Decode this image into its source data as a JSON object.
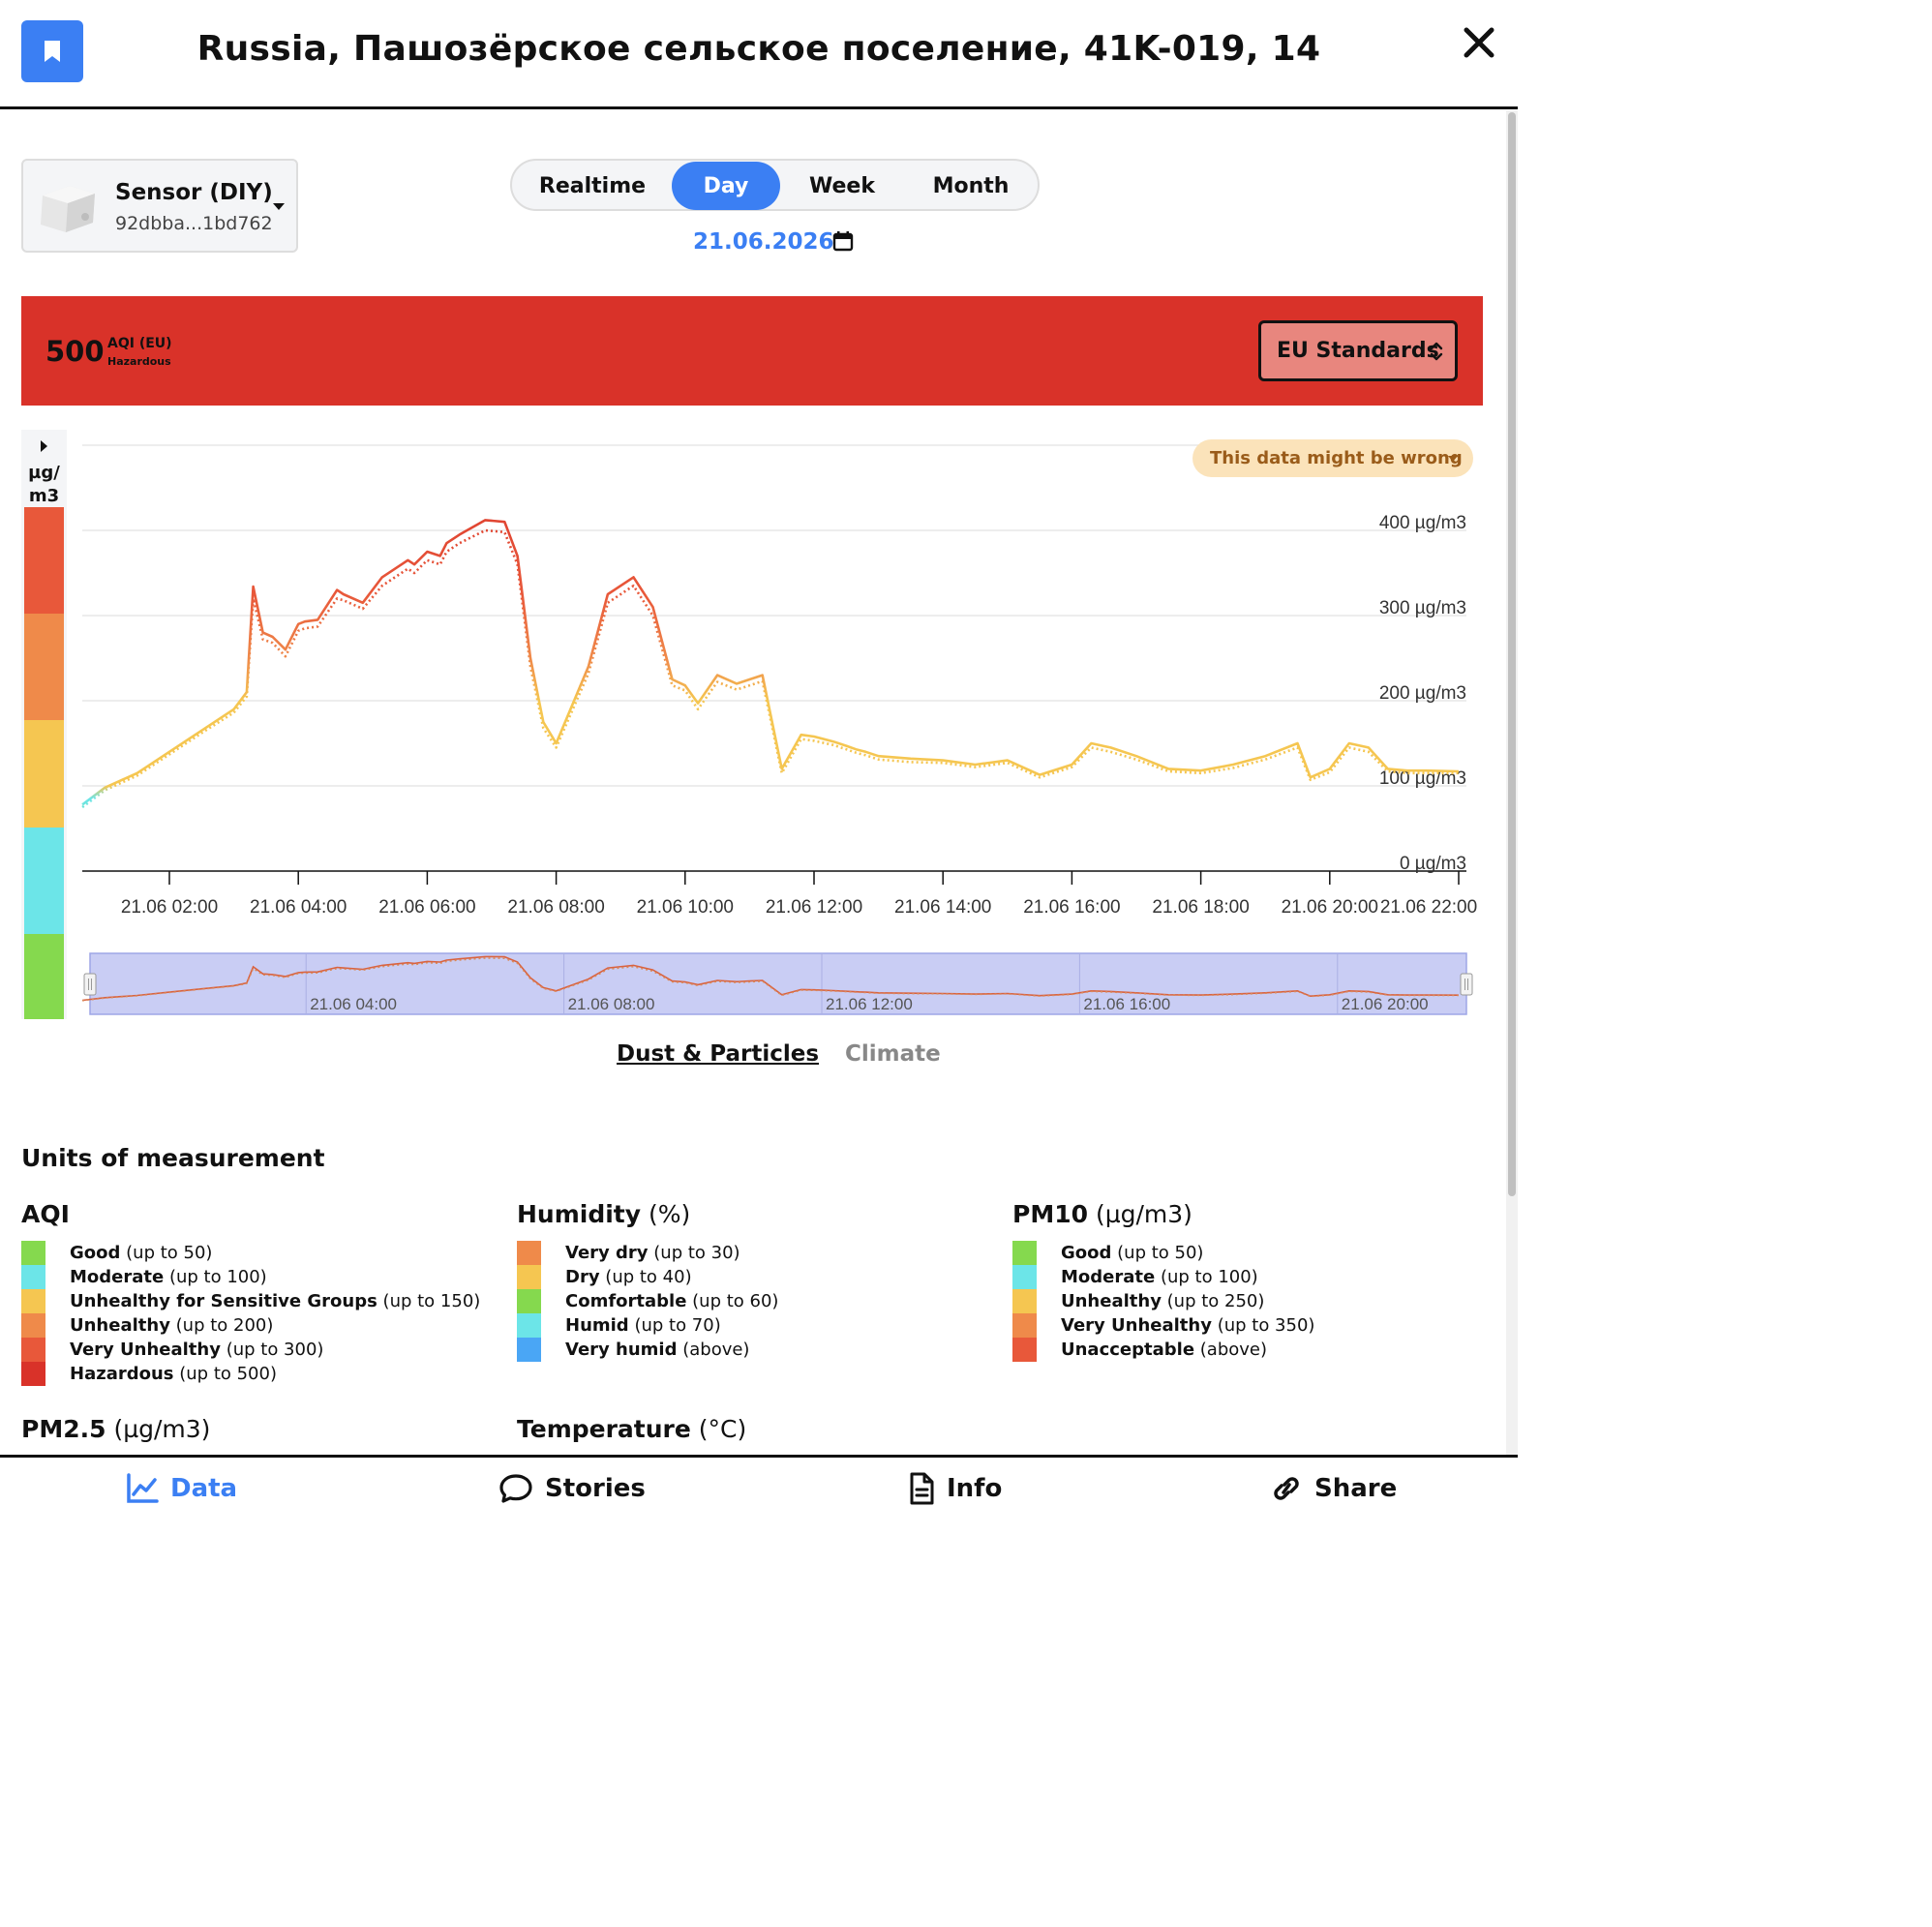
{
  "header": {
    "title": "Russia, Пашозёрское сельское поселение, 41K-019, 14"
  },
  "sensor": {
    "name": "Sensor (DIY)",
    "id": "92dbba...1bd762"
  },
  "period_tabs": [
    {
      "label": "Realtime",
      "active": false
    },
    {
      "label": "Day",
      "active": true
    },
    {
      "label": "Week",
      "active": false
    },
    {
      "label": "Month",
      "active": false
    }
  ],
  "date": "21.06.2026",
  "aqi": {
    "value": "500",
    "label": "AQI (EU)",
    "level": "Hazardous",
    "standard": "EU Standards",
    "color": "#d93229"
  },
  "scale": {
    "unit": "µg/m3",
    "colors": [
      "#e8583a",
      "#ef8a4a",
      "#f5c651",
      "#6ce5e8",
      "#85d94e"
    ]
  },
  "warning": "This data might be wrong",
  "chart_data": {
    "type": "line",
    "xlabel": "",
    "ylabel": "",
    "y_ticks": [
      "0 µg/m3",
      "100 µg/m3",
      "200 µg/m3",
      "300 µg/m3",
      "400 µg/m3"
    ],
    "ylim": [
      0,
      500
    ],
    "x_ticks": [
      "21.06 02:00",
      "21.06 04:00",
      "21.06 06:00",
      "21.06 08:00",
      "21.06 10:00",
      "21.06 12:00",
      "21.06 14:00",
      "21.06 16:00",
      "21.06 18:00",
      "21.06 20:00",
      "21.06 22:00"
    ],
    "navigator_ticks": [
      "21.06 04:00",
      "21.06 08:00",
      "21.06 12:00",
      "21.06 16:00",
      "21.06 20:00"
    ],
    "x_hours": [
      0.65,
      1.0,
      1.5,
      2.0,
      2.5,
      3.0,
      3.2,
      3.3,
      3.45,
      3.6,
      3.8,
      4.0,
      4.1,
      4.3,
      4.6,
      4.7,
      5.0,
      5.3,
      5.7,
      5.8,
      6.0,
      6.2,
      6.3,
      6.5,
      6.9,
      7.2,
      7.4,
      7.6,
      7.8,
      8.0,
      8.5,
      8.8,
      9.2,
      9.5,
      9.8,
      10.0,
      10.2,
      10.5,
      10.8,
      11.0,
      11.2,
      11.5,
      11.8,
      12.0,
      12.3,
      12.5,
      12.65,
      12.8,
      13.0,
      13.5,
      14.0,
      14.5,
      15.0,
      15.5,
      16.0,
      16.3,
      16.6,
      17.0,
      17.5,
      18.0,
      18.5,
      19.0,
      19.5,
      19.7,
      20.0,
      20.3,
      20.6,
      20.9,
      21.2,
      21.5,
      22.0
    ],
    "series": [
      {
        "name": "PM10",
        "values": [
          78,
          98,
          115,
          140,
          165,
          190,
          210,
          334,
          280,
          275,
          260,
          290,
          293,
          295,
          330,
          325,
          315,
          345,
          365,
          360,
          375,
          370,
          385,
          395,
          412,
          410,
          370,
          250,
          175,
          150,
          240,
          325,
          345,
          310,
          225,
          218,
          197,
          230,
          220,
          225,
          230,
          120,
          160,
          158,
          152,
          147,
          143,
          140,
          135,
          132,
          130,
          125,
          130,
          113,
          125,
          150,
          145,
          135,
          120,
          118,
          125,
          135,
          150,
          110,
          120,
          150,
          145,
          120,
          118,
          118,
          117
        ]
      },
      {
        "name": "PM2.5",
        "values": [
          75,
          95,
          112,
          137,
          162,
          186,
          205,
          320,
          272,
          268,
          252,
          282,
          285,
          287,
          320,
          318,
          308,
          335,
          355,
          350,
          365,
          360,
          375,
          385,
          400,
          398,
          360,
          240,
          168,
          145,
          232,
          315,
          335,
          300,
          218,
          212,
          190,
          222,
          213,
          218,
          223,
          115,
          155,
          153,
          148,
          143,
          139,
          136,
          131,
          128,
          127,
          122,
          127,
          110,
          122,
          145,
          140,
          131,
          117,
          115,
          121,
          131,
          145,
          107,
          116,
          145,
          140,
          117,
          115,
          115,
          115
        ]
      }
    ]
  },
  "param_tabs": {
    "dust": "Dust & Particles",
    "climate": "Climate"
  },
  "legend": {
    "title": "Units of measurement",
    "aqi": {
      "title": "AQI",
      "unit": "",
      "items": [
        {
          "name": "Good",
          "range": "(up to 50)",
          "color": "#85d94e"
        },
        {
          "name": "Moderate",
          "range": "(up to 100)",
          "color": "#6ce5e8"
        },
        {
          "name": "Unhealthy for Sensitive Groups",
          "range": "(up to 150)",
          "color": "#f5c651"
        },
        {
          "name": "Unhealthy",
          "range": "(up to 200)",
          "color": "#ef8a4a"
        },
        {
          "name": "Very Unhealthy",
          "range": "(up to 300)",
          "color": "#e8583a"
        },
        {
          "name": "Hazardous",
          "range": "(up to 500)",
          "color": "#d93229"
        }
      ]
    },
    "humidity": {
      "title": "Humidity",
      "unit": "(%)",
      "items": [
        {
          "name": "Very dry",
          "range": "(up to 30)",
          "color": "#ef8a4a"
        },
        {
          "name": "Dry",
          "range": "(up to 40)",
          "color": "#f5c651"
        },
        {
          "name": "Comfortable",
          "range": "(up to 60)",
          "color": "#85d94e"
        },
        {
          "name": "Humid",
          "range": "(up to 70)",
          "color": "#6ce5e8"
        },
        {
          "name": "Very humid",
          "range": "(above)",
          "color": "#4aa6f5"
        }
      ]
    },
    "pm10": {
      "title": "PM10",
      "unit": "(µg/m3)",
      "items": [
        {
          "name": "Good",
          "range": "(up to 50)",
          "color": "#85d94e"
        },
        {
          "name": "Moderate",
          "range": "(up to 100)",
          "color": "#6ce5e8"
        },
        {
          "name": "Unhealthy",
          "range": "(up to 250)",
          "color": "#f5c651"
        },
        {
          "name": "Very Unhealthy",
          "range": "(up to 350)",
          "color": "#ef8a4a"
        },
        {
          "name": "Unacceptable",
          "range": "(above)",
          "color": "#e8583a"
        }
      ]
    },
    "pm25": {
      "title": "PM2.5",
      "unit": "(µg/m3)"
    },
    "temperature": {
      "title": "Temperature",
      "unit": "(°C)"
    }
  },
  "bottom_nav": {
    "data": "Data",
    "stories": "Stories",
    "info": "Info",
    "share": "Share"
  }
}
